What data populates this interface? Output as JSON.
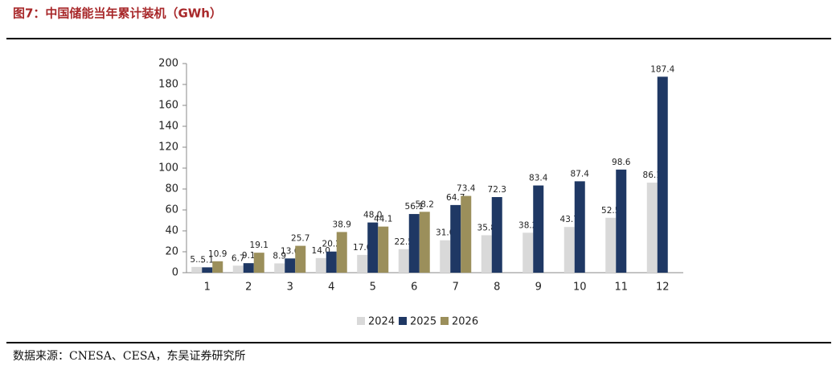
{
  "chart_data": {
    "type": "bar",
    "title": "图7：中国储能当年累计装机（GWh）",
    "source": "数据来源：CNESA、CESA，东吴证券研究所",
    "categories": [
      "1",
      "2",
      "3",
      "4",
      "5",
      "6",
      "7",
      "8",
      "9",
      "10",
      "11",
      "12"
    ],
    "series": [
      {
        "name": "2024",
        "color": "#d9d9d9",
        "values": [
          5.5,
          6.7,
          8.9,
          14.0,
          17.0,
          22.5,
          31.0,
          35.8,
          38.2,
          43.7,
          52.5,
          86.1
        ],
        "value_labels": [
          "5...",
          "6.7",
          "8.9",
          "14.0",
          "17.0",
          "22.5",
          "31.0",
          "35.8",
          "38.2",
          "43.7",
          "52.5",
          "86.1"
        ]
      },
      {
        "name": "2025",
        "color": "#1f3864",
        "values": [
          5.1,
          9.1,
          13.6,
          20.2,
          48.0,
          56.1,
          64.7,
          72.3,
          83.4,
          87.4,
          98.6,
          187.4
        ],
        "value_labels": [
          "5.1",
          "9.1",
          "13.6",
          "20.2",
          "48.0",
          "56.1",
          "64.7",
          "72.3",
          "83.4",
          "87.4",
          "98.6",
          "187.4"
        ]
      },
      {
        "name": "2026",
        "color": "#9b8f5b",
        "values": [
          10.9,
          19.1,
          25.7,
          38.9,
          44.1,
          58.2,
          73.4,
          null,
          null,
          null,
          null,
          null
        ],
        "value_labels": [
          "10.9",
          "19.1",
          "25.7",
          "38.9",
          "44.1",
          "58.2",
          "73.4",
          null,
          null,
          null,
          null,
          null
        ]
      }
    ],
    "ylim": [
      0,
      200
    ],
    "yticks": [
      0,
      20,
      40,
      60,
      80,
      100,
      120,
      140,
      160,
      180,
      200
    ],
    "grid": false,
    "legend": "bottom"
  }
}
